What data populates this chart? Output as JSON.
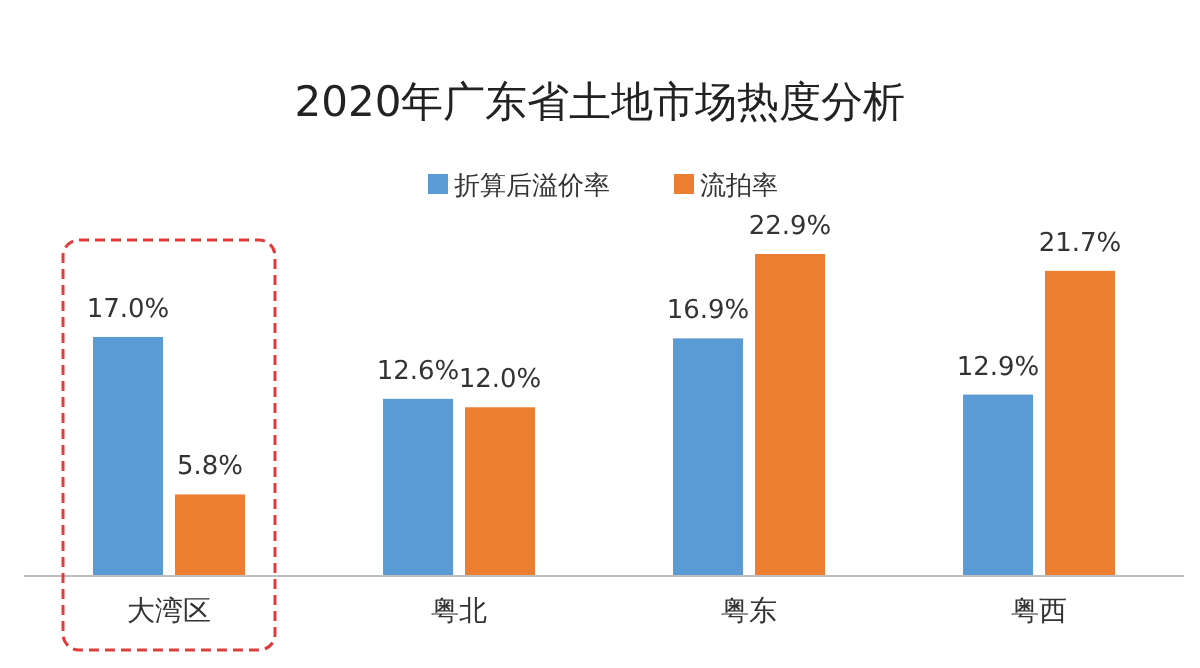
{
  "chart_data": {
    "type": "bar",
    "title": "2020年广东省土地市场热度分析",
    "categories": [
      "大湾区",
      "粤北",
      "粤东",
      "粤西"
    ],
    "series": [
      {
        "name": "折算后溢价率",
        "color": "#5b9bd5",
        "values": [
          17.0,
          12.6,
          16.9,
          12.9
        ],
        "value_labels": [
          "17.0%",
          "12.6%",
          "16.9%",
          "12.9%"
        ]
      },
      {
        "name": "流拍率",
        "color": "#ed7d31",
        "values": [
          5.8,
          12.0,
          22.9,
          21.7
        ],
        "value_labels": [
          "5.8%",
          "12.0%",
          "22.9%",
          "21.7%"
        ]
      }
    ],
    "legend": "top"
  }
}
